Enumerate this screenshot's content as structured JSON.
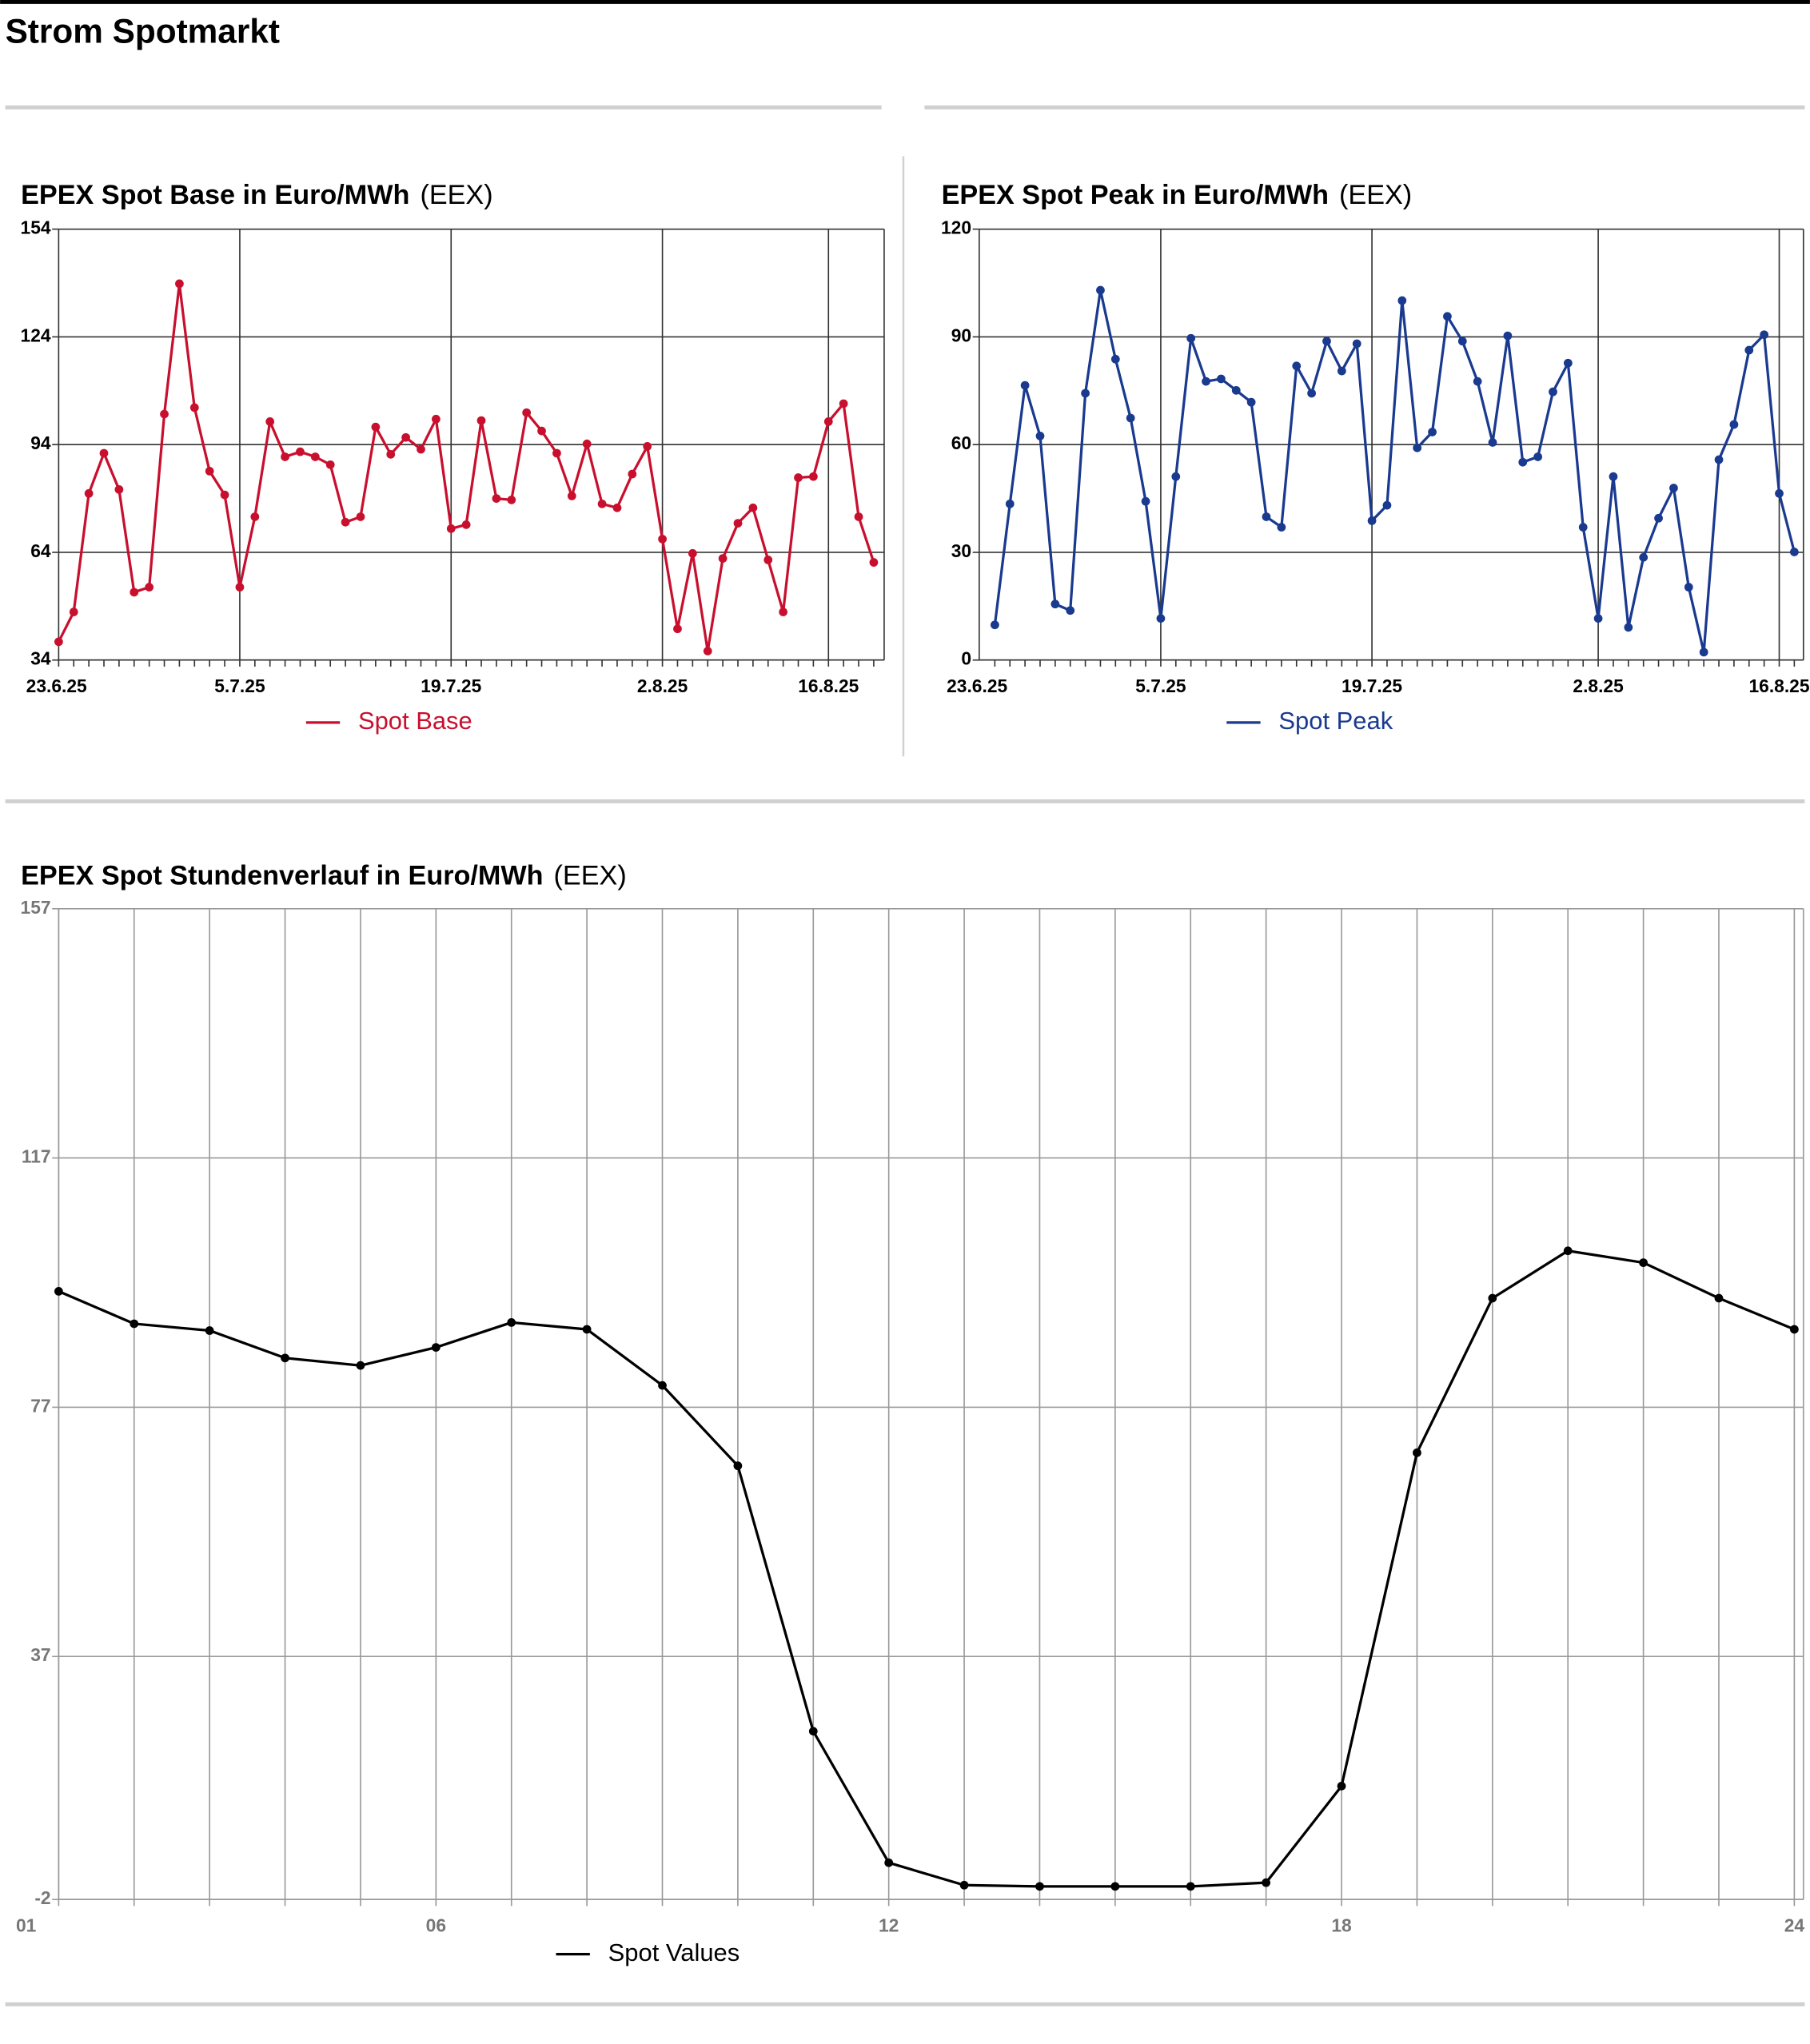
{
  "page_title": "Strom Spotmarkt",
  "chart_data": [
    {
      "type": "line",
      "title": "EPEX Spot Base in Euro/MWh",
      "source": "(EEX)",
      "categories": [
        "23.6.25",
        null,
        null,
        null,
        null,
        null,
        null,
        null,
        null,
        null,
        null,
        null,
        "5.7.25",
        null,
        null,
        null,
        null,
        null,
        null,
        null,
        null,
        null,
        null,
        null,
        null,
        null,
        "19.7.25",
        null,
        null,
        null,
        null,
        null,
        null,
        null,
        null,
        null,
        null,
        null,
        null,
        null,
        "2.8.25",
        null,
        null,
        null,
        null,
        null,
        null,
        null,
        null,
        null,
        null,
        "16.8.25",
        null,
        null,
        null
      ],
      "series": [
        {
          "name": "Spot Base",
          "color": "#c8102e",
          "values": [
            39.1,
            47.4,
            80.4,
            91.6,
            81.5,
            52.9,
            54.3,
            102.5,
            138.8,
            104.3,
            86.6,
            80,
            54.3,
            73.9,
            100.4,
            90.6,
            92,
            90.6,
            88.4,
            72.4,
            73.9,
            98.9,
            91.3,
            96,
            92.7,
            101.1,
            70.6,
            71.7,
            100.7,
            79,
            78.6,
            102.9,
            97.8,
            91.6,
            79.7,
            94.2,
            77.5,
            76.4,
            85.8,
            93.5,
            67.7,
            42.7,
            63.7,
            36.5,
            62.3,
            72.1,
            76.4,
            61.9,
            47.4,
            84.8,
            85.1,
            100.4,
            105.4,
            73.9,
            61.2
          ]
        }
      ],
      "ylim": [
        34,
        154
      ],
      "yticks": [
        34,
        64,
        94,
        124,
        154
      ],
      "grid": true,
      "xgrid": "labels"
    },
    {
      "type": "line",
      "title": "EPEX Spot Peak in Euro/MWh",
      "source": "(EEX)",
      "categories": [
        "23.6.25",
        null,
        null,
        null,
        null,
        null,
        null,
        null,
        null,
        null,
        null,
        "5.7.25",
        null,
        null,
        null,
        null,
        null,
        null,
        null,
        null,
        null,
        null,
        null,
        null,
        null,
        "19.7.25",
        null,
        null,
        null,
        null,
        null,
        null,
        null,
        null,
        null,
        null,
        null,
        null,
        null,
        null,
        "2.8.25",
        null,
        null,
        null,
        null,
        null,
        null,
        null,
        null,
        null,
        null,
        null,
        "16.8.25",
        null
      ],
      "series": [
        {
          "name": "Spot Peak",
          "color": "#1a3a8f",
          "values": [
            9.8,
            43.5,
            76.5,
            62.4,
            15.6,
            13.8,
            74.3,
            103,
            83.8,
            67.4,
            44.2,
            11.6,
            51.1,
            89.6,
            77.6,
            78.3,
            75.1,
            71.8,
            39.9,
            37,
            81.9,
            74.3,
            88.8,
            80.5,
            88.1,
            38.8,
            43.1,
            100.1,
            59.1,
            63.5,
            95.7,
            88.8,
            77.6,
            60.6,
            90.3,
            55.1,
            56.6,
            74.7,
            82.7,
            37,
            11.6,
            51.1,
            9.1,
            28.6,
            39.5,
            47.9,
            20.3,
            2.2,
            55.8,
            65.6,
            86.3,
            90.6,
            46.4,
            30.1
          ]
        }
      ],
      "ylim": [
        0,
        120
      ],
      "yticks": [
        0,
        30,
        60,
        90,
        120
      ],
      "grid": true,
      "xgrid": "labels"
    },
    {
      "type": "line",
      "title": "EPEX Spot Stundenverlauf in Euro/MWh",
      "source": "(EEX)",
      "categories": [
        "01",
        null,
        null,
        null,
        null,
        "06",
        null,
        null,
        null,
        null,
        null,
        "12",
        null,
        null,
        null,
        null,
        null,
        "18",
        null,
        null,
        null,
        null,
        null,
        "24"
      ],
      "series": [
        {
          "name": "Spot Values",
          "color": "#000000",
          "values": [
            95.6,
            90.4,
            89.3,
            84.9,
            83.7,
            86.6,
            90.6,
            89.5,
            80.5,
            67.6,
            25,
            3.9,
            0.3,
            0.1,
            0.1,
            0.1,
            0.7,
            16.2,
            69.7,
            94.5,
            102.1,
            100.2,
            94.5,
            89.5
          ]
        }
      ],
      "ylim": [
        -2,
        157
      ],
      "yticks": [
        -2,
        37,
        77,
        117,
        157
      ],
      "grid": true,
      "xgrid": "all"
    }
  ]
}
